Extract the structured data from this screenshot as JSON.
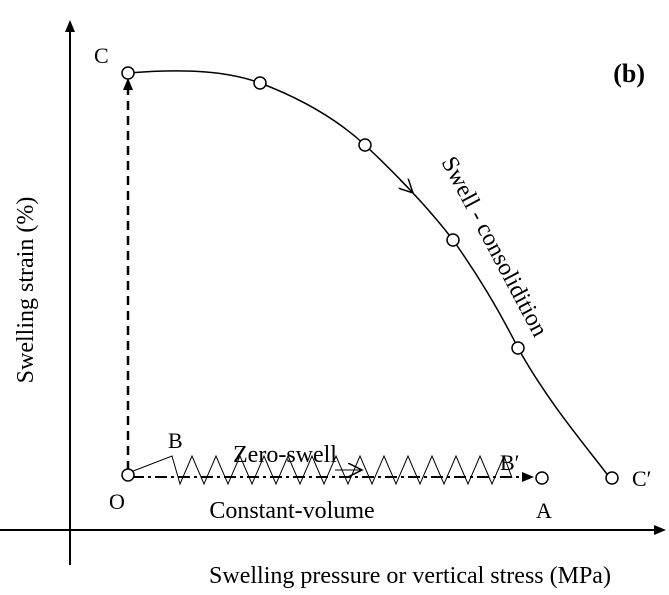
{
  "panel_label": "(b)",
  "y_axis_label": "Swelling strain (%)",
  "x_axis_label": "Swelling pressure or vertical stress (MPa)",
  "points": {
    "C": "C",
    "O": "O",
    "B": "B",
    "B_prime": "B′",
    "A": "A",
    "C_prime": "C′"
  },
  "paths": {
    "swell_consolidation": "Swell - consolidition",
    "zero_swell": "Zero-swell",
    "constant_volume": "Constant-volume"
  }
}
